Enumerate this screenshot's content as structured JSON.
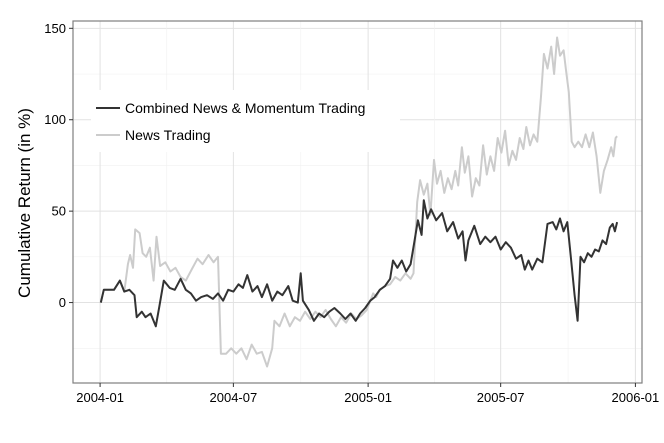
{
  "chart_data": {
    "type": "line",
    "title": "",
    "xlabel": "",
    "ylabel": "Cumulative Return (in %)",
    "x_ticks": [
      "2004-01",
      "2004-07",
      "2005-01",
      "2005-07",
      "2006-01"
    ],
    "y_ticks": [
      0,
      50,
      100,
      150
    ],
    "xlim": [
      "2003-11-25",
      "2006-01-10"
    ],
    "ylim": [
      -44,
      154
    ],
    "grid": true,
    "legend_position": "top-left",
    "series": [
      {
        "name": "Combined News & Momentum Trading",
        "color": "#333333",
        "points": [
          [
            "2004-01-02",
            0
          ],
          [
            "2004-01-06",
            7
          ],
          [
            "2004-01-20",
            7
          ],
          [
            "2004-01-28",
            12
          ],
          [
            "2004-02-03",
            6
          ],
          [
            "2004-02-10",
            7
          ],
          [
            "2004-02-17",
            4
          ],
          [
            "2004-02-20",
            -8
          ],
          [
            "2004-02-27",
            -5
          ],
          [
            "2004-03-03",
            -8
          ],
          [
            "2004-03-10",
            -6
          ],
          [
            "2004-03-17",
            -13
          ],
          [
            "2004-03-22",
            -2
          ],
          [
            "2004-03-28",
            12
          ],
          [
            "2004-04-05",
            8
          ],
          [
            "2004-04-12",
            7
          ],
          [
            "2004-04-20",
            13
          ],
          [
            "2004-04-27",
            7
          ],
          [
            "2004-05-04",
            5
          ],
          [
            "2004-05-11",
            1
          ],
          [
            "2004-05-18",
            3
          ],
          [
            "2004-05-26",
            4
          ],
          [
            "2004-06-03",
            2
          ],
          [
            "2004-06-10",
            5
          ],
          [
            "2004-06-17",
            1
          ],
          [
            "2004-06-24",
            7
          ],
          [
            "2004-07-01",
            6
          ],
          [
            "2004-07-08",
            10
          ],
          [
            "2004-07-14",
            8
          ],
          [
            "2004-07-20",
            15
          ],
          [
            "2004-07-27",
            6
          ],
          [
            "2004-08-03",
            9
          ],
          [
            "2004-08-09",
            3
          ],
          [
            "2004-08-16",
            10
          ],
          [
            "2004-08-23",
            1
          ],
          [
            "2004-08-30",
            6
          ],
          [
            "2004-09-06",
            4
          ],
          [
            "2004-09-14",
            9
          ],
          [
            "2004-09-20",
            1
          ],
          [
            "2004-09-27",
            0
          ],
          [
            "2004-10-01",
            16
          ],
          [
            "2004-10-04",
            1
          ],
          [
            "2004-10-12",
            -4
          ],
          [
            "2004-10-19",
            -10
          ],
          [
            "2004-10-26",
            -6
          ],
          [
            "2004-11-02",
            -8
          ],
          [
            "2004-11-09",
            -5
          ],
          [
            "2004-11-16",
            -3
          ],
          [
            "2004-11-24",
            -6
          ],
          [
            "2004-12-01",
            -9
          ],
          [
            "2004-12-08",
            -6
          ],
          [
            "2004-12-15",
            -10
          ],
          [
            "2004-12-21",
            -6
          ],
          [
            "2004-12-28",
            -3
          ],
          [
            "2005-01-04",
            1
          ],
          [
            "2005-01-10",
            3
          ],
          [
            "2005-01-17",
            7
          ],
          [
            "2005-01-24",
            9
          ],
          [
            "2005-01-31",
            13
          ],
          [
            "2005-02-04",
            23
          ],
          [
            "2005-02-10",
            19
          ],
          [
            "2005-02-16",
            23
          ],
          [
            "2005-02-22",
            17
          ],
          [
            "2005-02-28",
            21
          ],
          [
            "2005-03-05",
            33
          ],
          [
            "2005-03-10",
            45
          ],
          [
            "2005-03-15",
            37
          ],
          [
            "2005-03-18",
            56
          ],
          [
            "2005-03-23",
            46
          ],
          [
            "2005-03-28",
            51
          ],
          [
            "2005-04-04",
            45
          ],
          [
            "2005-04-12",
            49
          ],
          [
            "2005-04-19",
            39
          ],
          [
            "2005-04-27",
            44
          ],
          [
            "2005-05-04",
            35
          ],
          [
            "2005-05-10",
            39
          ],
          [
            "2005-05-14",
            23
          ],
          [
            "2005-05-18",
            34
          ],
          [
            "2005-05-26",
            42
          ],
          [
            "2005-06-03",
            32
          ],
          [
            "2005-06-10",
            36
          ],
          [
            "2005-06-17",
            33
          ],
          [
            "2005-06-24",
            36
          ],
          [
            "2005-07-01",
            29
          ],
          [
            "2005-07-08",
            33
          ],
          [
            "2005-07-15",
            30
          ],
          [
            "2005-07-22",
            24
          ],
          [
            "2005-07-29",
            26
          ],
          [
            "2005-08-03",
            18
          ],
          [
            "2005-08-08",
            23
          ],
          [
            "2005-08-13",
            18
          ],
          [
            "2005-08-20",
            24
          ],
          [
            "2005-08-27",
            22
          ],
          [
            "2005-09-03",
            43
          ],
          [
            "2005-09-10",
            44
          ],
          [
            "2005-09-15",
            40
          ],
          [
            "2005-09-20",
            46
          ],
          [
            "2005-09-25",
            39
          ],
          [
            "2005-09-30",
            44
          ],
          [
            "2005-10-05",
            24
          ],
          [
            "2005-10-10",
            4
          ],
          [
            "2005-10-14",
            -10
          ],
          [
            "2005-10-18",
            25
          ],
          [
            "2005-10-23",
            22
          ],
          [
            "2005-10-28",
            27
          ],
          [
            "2005-11-02",
            25
          ],
          [
            "2005-11-07",
            29
          ],
          [
            "2005-11-12",
            28
          ],
          [
            "2005-11-17",
            34
          ],
          [
            "2005-11-22",
            32
          ],
          [
            "2005-11-27",
            41
          ],
          [
            "2005-12-01",
            43
          ],
          [
            "2005-12-04",
            39
          ],
          [
            "2005-12-07",
            44
          ]
        ]
      },
      {
        "name": "News Trading",
        "color": "#cccccc",
        "points": [
          [
            "2004-01-02",
            0
          ],
          [
            "2004-01-06",
            7
          ],
          [
            "2004-01-20",
            7
          ],
          [
            "2004-01-28",
            12
          ],
          [
            "2004-02-03",
            6
          ],
          [
            "2004-02-08",
            21
          ],
          [
            "2004-02-11",
            26
          ],
          [
            "2004-02-15",
            19
          ],
          [
            "2004-02-18",
            40
          ],
          [
            "2004-02-24",
            38
          ],
          [
            "2004-02-28",
            27
          ],
          [
            "2004-03-04",
            25
          ],
          [
            "2004-03-09",
            30
          ],
          [
            "2004-03-14",
            12
          ],
          [
            "2004-03-18",
            36
          ],
          [
            "2004-03-23",
            20
          ],
          [
            "2004-03-30",
            22
          ],
          [
            "2004-04-06",
            17
          ],
          [
            "2004-04-13",
            19
          ],
          [
            "2004-04-20",
            14
          ],
          [
            "2004-04-27",
            12
          ],
          [
            "2004-05-05",
            18
          ],
          [
            "2004-05-13",
            24
          ],
          [
            "2004-05-20",
            21
          ],
          [
            "2004-05-28",
            26
          ],
          [
            "2004-06-04",
            22
          ],
          [
            "2004-06-10",
            25
          ],
          [
            "2004-06-14",
            -28
          ],
          [
            "2004-06-21",
            -28
          ],
          [
            "2004-06-28",
            -25
          ],
          [
            "2004-07-05",
            -28
          ],
          [
            "2004-07-12",
            -25
          ],
          [
            "2004-07-19",
            -31
          ],
          [
            "2004-07-26",
            -23
          ],
          [
            "2004-08-02",
            -28
          ],
          [
            "2004-08-09",
            -27
          ],
          [
            "2004-08-16",
            -35
          ],
          [
            "2004-08-23",
            -25
          ],
          [
            "2004-08-26",
            -10
          ],
          [
            "2004-09-02",
            -13
          ],
          [
            "2004-09-09",
            -6
          ],
          [
            "2004-09-16",
            -13
          ],
          [
            "2004-09-23",
            -8
          ],
          [
            "2004-09-30",
            -10
          ],
          [
            "2004-10-07",
            -5
          ],
          [
            "2004-10-14",
            -9
          ],
          [
            "2004-10-21",
            -5
          ],
          [
            "2004-10-28",
            -8
          ],
          [
            "2004-11-04",
            -4
          ],
          [
            "2004-11-11",
            -9
          ],
          [
            "2004-11-18",
            -13
          ],
          [
            "2004-11-25",
            -8
          ],
          [
            "2004-12-02",
            -11
          ],
          [
            "2004-12-09",
            -6
          ],
          [
            "2004-12-16",
            -9
          ],
          [
            "2004-12-23",
            -7
          ],
          [
            "2004-12-30",
            -4
          ],
          [
            "2005-01-04",
            1
          ],
          [
            "2005-01-08",
            5
          ],
          [
            "2005-01-12",
            3
          ],
          [
            "2005-01-17",
            7
          ],
          [
            "2005-01-24",
            9
          ],
          [
            "2005-01-31",
            10
          ],
          [
            "2005-02-07",
            14
          ],
          [
            "2005-02-14",
            12
          ],
          [
            "2005-02-21",
            16
          ],
          [
            "2005-02-28",
            13
          ],
          [
            "2005-03-04",
            16
          ],
          [
            "2005-03-09",
            55
          ],
          [
            "2005-03-13",
            67
          ],
          [
            "2005-03-18",
            59
          ],
          [
            "2005-03-23",
            65
          ],
          [
            "2005-03-27",
            48
          ],
          [
            "2005-04-01",
            78
          ],
          [
            "2005-04-05",
            65
          ],
          [
            "2005-04-10",
            72
          ],
          [
            "2005-04-15",
            60
          ],
          [
            "2005-04-20",
            68
          ],
          [
            "2005-04-25",
            62
          ],
          [
            "2005-04-30",
            72
          ],
          [
            "2005-05-04",
            64
          ],
          [
            "2005-05-09",
            85
          ],
          [
            "2005-05-13",
            71
          ],
          [
            "2005-05-18",
            80
          ],
          [
            "2005-05-23",
            58
          ],
          [
            "2005-05-28",
            68
          ],
          [
            "2005-06-02",
            64
          ],
          [
            "2005-06-07",
            86
          ],
          [
            "2005-06-12",
            70
          ],
          [
            "2005-06-17",
            80
          ],
          [
            "2005-06-22",
            72
          ],
          [
            "2005-06-27",
            90
          ],
          [
            "2005-07-02",
            82
          ],
          [
            "2005-07-07",
            94
          ],
          [
            "2005-07-12",
            75
          ],
          [
            "2005-07-17",
            83
          ],
          [
            "2005-07-22",
            78
          ],
          [
            "2005-07-27",
            90
          ],
          [
            "2005-08-01",
            84
          ],
          [
            "2005-08-05",
            96
          ],
          [
            "2005-08-10",
            86
          ],
          [
            "2005-08-15",
            92
          ],
          [
            "2005-08-20",
            88
          ],
          [
            "2005-08-25",
            112
          ],
          [
            "2005-08-29",
            136
          ],
          [
            "2005-09-03",
            128
          ],
          [
            "2005-09-08",
            140
          ],
          [
            "2005-09-12",
            125
          ],
          [
            "2005-09-16",
            145
          ],
          [
            "2005-09-20",
            135
          ],
          [
            "2005-09-25",
            138
          ],
          [
            "2005-09-28",
            128
          ],
          [
            "2005-10-02",
            115
          ],
          [
            "2005-10-06",
            88
          ],
          [
            "2005-10-10",
            85
          ],
          [
            "2005-10-15",
            88
          ],
          [
            "2005-10-20",
            85
          ],
          [
            "2005-10-25",
            92
          ],
          [
            "2005-10-30",
            85
          ],
          [
            "2005-11-04",
            93
          ],
          [
            "2005-11-09",
            80
          ],
          [
            "2005-11-14",
            60
          ],
          [
            "2005-11-19",
            72
          ],
          [
            "2005-11-24",
            78
          ],
          [
            "2005-11-29",
            85
          ],
          [
            "2005-12-02",
            80
          ],
          [
            "2005-12-05",
            90
          ],
          [
            "2005-12-07",
            91
          ]
        ]
      }
    ]
  }
}
